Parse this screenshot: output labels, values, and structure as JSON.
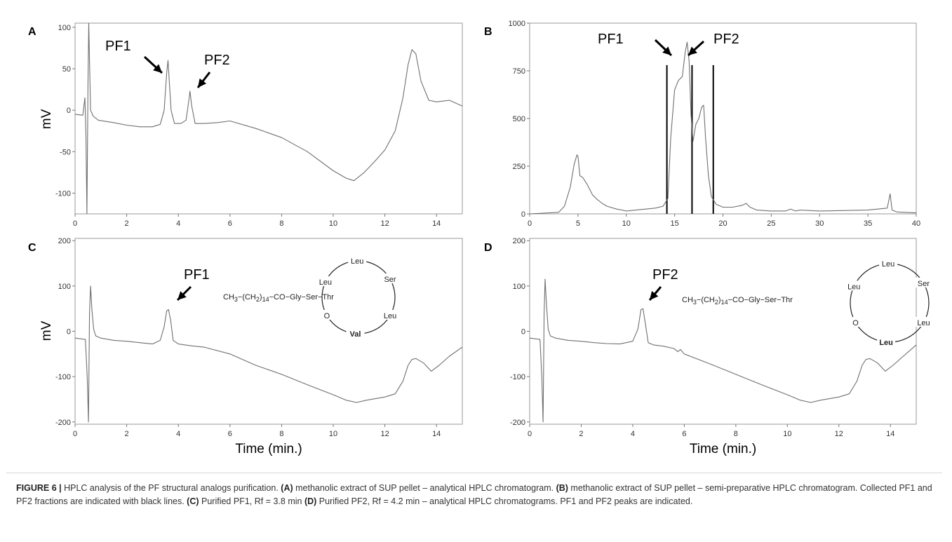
{
  "chart_data": [
    {
      "panel": "A",
      "type": "line",
      "xlim": [
        0,
        15
      ],
      "ylim": [
        -125,
        105
      ],
      "xticks": [
        0,
        2,
        4,
        6,
        8,
        10,
        12,
        14
      ],
      "yticks": [
        100,
        50,
        0,
        -50,
        -100
      ],
      "ylabel": "mV",
      "xlabel": "",
      "x": [
        0,
        0.3,
        0.38,
        0.42,
        0.46,
        0.5,
        0.53,
        0.56,
        0.6,
        0.7,
        0.9,
        1.5,
        2.0,
        2.5,
        3.0,
        3.3,
        3.45,
        3.55,
        3.6,
        3.65,
        3.72,
        3.85,
        4.1,
        4.3,
        4.4,
        4.45,
        4.52,
        4.65,
        5.0,
        5.5,
        6.0,
        7.0,
        8.0,
        9.0,
        10.0,
        10.5,
        10.8,
        11.2,
        11.6,
        12.0,
        12.4,
        12.7,
        12.9,
        13.05,
        13.2,
        13.4,
        13.7,
        14.0,
        14.5,
        15.0
      ],
      "y": [
        -5,
        -6,
        15,
        -30,
        -125,
        30,
        105,
        60,
        0,
        -7,
        -12,
        -15,
        -18,
        -20,
        -20,
        -17,
        0,
        45,
        60,
        35,
        0,
        -16,
        -16,
        -12,
        10,
        23,
        5,
        -16,
        -16,
        -15,
        -13,
        -22,
        -33,
        -50,
        -73,
        -82,
        -85,
        -75,
        -62,
        -48,
        -25,
        15,
        55,
        73,
        68,
        35,
        12,
        10,
        12,
        5
      ],
      "annotations": [
        "PF1",
        "PF2"
      ]
    },
    {
      "panel": "B",
      "type": "line",
      "xlim": [
        0,
        40
      ],
      "ylim": [
        0,
        1000
      ],
      "xticks": [
        0,
        5,
        10,
        15,
        20,
        25,
        30,
        35,
        40
      ],
      "yticks": [
        1000,
        750,
        500,
        250,
        0
      ],
      "ylabel": "",
      "xlabel": "",
      "x": [
        0,
        3,
        3.6,
        4.2,
        4.6,
        4.9,
        5.0,
        5.2,
        5.5,
        6.0,
        6.5,
        7.0,
        7.5,
        8.0,
        9.0,
        10,
        11,
        12,
        13,
        13.8,
        14.3,
        14.6,
        15.0,
        15.4,
        15.8,
        16.1,
        16.3,
        16.5,
        16.7,
        16.9,
        17.2,
        17.5,
        17.8,
        18.0,
        18.2,
        18.5,
        18.8,
        19.3,
        20,
        21,
        22,
        22.4,
        22.8,
        23.5,
        25,
        26.5,
        27,
        27.5,
        28,
        30,
        35,
        37.0,
        37.3,
        37.5,
        38,
        40
      ],
      "y": [
        0,
        8,
        40,
        140,
        260,
        310,
        300,
        200,
        190,
        150,
        100,
        75,
        55,
        40,
        25,
        15,
        20,
        25,
        30,
        40,
        80,
        400,
        650,
        700,
        720,
        850,
        900,
        800,
        520,
        380,
        470,
        500,
        560,
        570,
        400,
        200,
        90,
        50,
        35,
        35,
        45,
        55,
        35,
        20,
        15,
        15,
        25,
        15,
        20,
        15,
        20,
        30,
        105,
        20,
        10,
        5
      ],
      "fraction_lines_x": [
        14.2,
        16.8,
        19.0
      ],
      "annotations": [
        "PF1",
        "PF2"
      ]
    },
    {
      "panel": "C",
      "type": "line",
      "xlim": [
        0,
        15
      ],
      "ylim": [
        -205,
        205
      ],
      "xticks": [
        0,
        2,
        4,
        6,
        8,
        10,
        12,
        14
      ],
      "yticks": [
        200,
        100,
        0,
        -100,
        -200
      ],
      "ylabel": "mV",
      "xlabel": "Time (min.)",
      "x": [
        0,
        0.4,
        0.47,
        0.52,
        0.56,
        0.6,
        0.65,
        0.72,
        0.8,
        1.0,
        1.5,
        2.0,
        2.5,
        3.0,
        3.3,
        3.45,
        3.55,
        3.62,
        3.7,
        3.8,
        4.0,
        4.5,
        5.0,
        6.0,
        7.0,
        8.0,
        9.0,
        10.0,
        10.5,
        10.9,
        11.3,
        12.0,
        12.4,
        12.7,
        12.9,
        13.05,
        13.2,
        13.5,
        13.8,
        14.1,
        14.5,
        15.0
      ],
      "y": [
        -15,
        -18,
        -100,
        -200,
        40,
        100,
        50,
        5,
        -10,
        -15,
        -20,
        -22,
        -25,
        -28,
        -20,
        10,
        45,
        48,
        25,
        -20,
        -28,
        -32,
        -35,
        -50,
        -75,
        -95,
        -118,
        -140,
        -152,
        -157,
        -152,
        -145,
        -138,
        -110,
        -75,
        -62,
        -60,
        -70,
        -88,
        -75,
        -55,
        -35
      ],
      "annotations": [
        "PF1"
      ],
      "structure": {
        "chain": "CH3−(CH2)14−CO−Gly−Ser−Thr",
        "ring": [
          "Leu",
          "Leu",
          "Ser",
          "Leu",
          "Val",
          "O"
        ]
      }
    },
    {
      "panel": "D",
      "type": "line",
      "xlim": [
        0,
        15
      ],
      "ylim": [
        -205,
        205
      ],
      "xticks": [
        0,
        2,
        4,
        6,
        8,
        10,
        12,
        14
      ],
      "yticks": [
        200,
        100,
        0,
        -100,
        -200
      ],
      "ylabel": "",
      "xlabel": "Time (min.)",
      "x": [
        0,
        0.4,
        0.47,
        0.52,
        0.56,
        0.6,
        0.65,
        0.72,
        0.8,
        1.0,
        1.5,
        2.0,
        2.5,
        3.0,
        3.5,
        4.0,
        4.2,
        4.32,
        4.4,
        4.48,
        4.6,
        4.8,
        5.2,
        5.6,
        5.75,
        5.85,
        6.0,
        7.0,
        8.0,
        9.0,
        10.0,
        10.5,
        10.9,
        11.3,
        12.0,
        12.4,
        12.7,
        12.9,
        13.05,
        13.2,
        13.5,
        13.8,
        14.1,
        14.5,
        15.0
      ],
      "y": [
        -15,
        -18,
        -100,
        -200,
        40,
        115,
        60,
        5,
        -10,
        -15,
        -20,
        -22,
        -25,
        -27,
        -28,
        -22,
        5,
        48,
        50,
        20,
        -25,
        -30,
        -33,
        -38,
        -45,
        -40,
        -50,
        -72,
        -95,
        -118,
        -140,
        -152,
        -157,
        -152,
        -145,
        -138,
        -110,
        -75,
        -62,
        -60,
        -70,
        -88,
        -75,
        -55,
        -30
      ],
      "annotations": [
        "PF2"
      ],
      "structure": {
        "chain": "CH3−(CH2)14−CO−Gly−Ser−Thr",
        "ring": [
          "Leu",
          "Leu",
          "Ser",
          "Leu",
          "Leu",
          "O"
        ]
      }
    }
  ],
  "caption": {
    "figure_label": "FIGURE 6 |",
    "intro": " HPLC analysis of the PF structural analogs purification. ",
    "a_label": "(A)",
    "a_text": " methanolic extract of SUP pellet – analytical HPLC chromatogram. ",
    "b_label": "(B)",
    "b_text": " methanolic extract of SUP pellet – semi-preparative HPLC chromatogram. Collected PF1 and PF2 fractions are indicated with black lines. ",
    "c_label": "(C)",
    "c_text": " Purified PF1, Rf = 3.8 min ",
    "d_label": "(D)",
    "d_text": " Purified PF2, Rf = 4.2 min – analytical HPLC chromatograms. PF1 and PF2 peaks are indicated."
  }
}
